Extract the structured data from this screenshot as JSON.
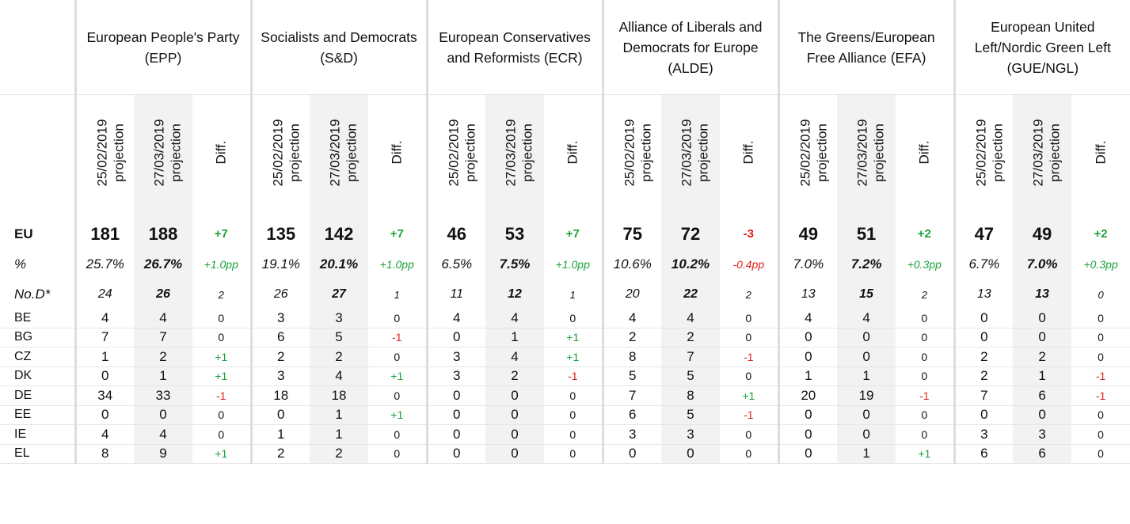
{
  "parties": [
    {
      "name": "European People's Party (EPP)"
    },
    {
      "name": "Socialists and Democrats (S&D)"
    },
    {
      "name": "European Conservatives and Reformists (ECR)"
    },
    {
      "name": "Alliance of Liberals and Democrats for Europe (ALDE)"
    },
    {
      "name": "The Greens/European Free Alliance (EFA)"
    },
    {
      "name": "European United Left/Nordic Green Left (GUE/NGL)"
    }
  ],
  "subheaders": {
    "proj1_date": "25/02/2019",
    "proj1_word": "projection",
    "proj2_date": "27/03/2019",
    "proj2_word": "projection",
    "diff": "Diff."
  },
  "summary_rows": {
    "eu": {
      "label": "EU",
      "cells": [
        [
          "181",
          "188",
          "+7"
        ],
        [
          "135",
          "142",
          "+7"
        ],
        [
          "46",
          "53",
          "+7"
        ],
        [
          "75",
          "72",
          "-3"
        ],
        [
          "49",
          "51",
          "+2"
        ],
        [
          "47",
          "49",
          "+2"
        ]
      ]
    },
    "pct": {
      "label": "%",
      "cells": [
        [
          "25.7%",
          "26.7%",
          "+1.0pp"
        ],
        [
          "19.1%",
          "20.1%",
          "+1.0pp"
        ],
        [
          "6.5%",
          "7.5%",
          "+1.0pp"
        ],
        [
          "10.6%",
          "10.2%",
          "-0.4pp"
        ],
        [
          "7.0%",
          "7.2%",
          "+0.3pp"
        ],
        [
          "6.7%",
          "7.0%",
          "+0.3pp"
        ]
      ]
    },
    "nod": {
      "label": "No.D*",
      "cells": [
        [
          "24",
          "26",
          "2"
        ],
        [
          "26",
          "27",
          "1"
        ],
        [
          "11",
          "12",
          "1"
        ],
        [
          "20",
          "22",
          "2"
        ],
        [
          "13",
          "15",
          "2"
        ],
        [
          "13",
          "13",
          "0"
        ]
      ]
    }
  },
  "countries": [
    {
      "code": "BE",
      "cells": [
        [
          "4",
          "4",
          "0"
        ],
        [
          "3",
          "3",
          "0"
        ],
        [
          "4",
          "4",
          "0"
        ],
        [
          "4",
          "4",
          "0"
        ],
        [
          "4",
          "4",
          "0"
        ],
        [
          "0",
          "0",
          "0"
        ]
      ]
    },
    {
      "code": "BG",
      "cells": [
        [
          "7",
          "7",
          "0"
        ],
        [
          "6",
          "5",
          "-1"
        ],
        [
          "0",
          "1",
          "+1"
        ],
        [
          "2",
          "2",
          "0"
        ],
        [
          "0",
          "0",
          "0"
        ],
        [
          "0",
          "0",
          "0"
        ]
      ]
    },
    {
      "code": "CZ",
      "cells": [
        [
          "1",
          "2",
          "+1"
        ],
        [
          "2",
          "2",
          "0"
        ],
        [
          "3",
          "4",
          "+1"
        ],
        [
          "8",
          "7",
          "-1"
        ],
        [
          "0",
          "0",
          "0"
        ],
        [
          "2",
          "2",
          "0"
        ]
      ]
    },
    {
      "code": "DK",
      "cells": [
        [
          "0",
          "1",
          "+1"
        ],
        [
          "3",
          "4",
          "+1"
        ],
        [
          "3",
          "2",
          "-1"
        ],
        [
          "5",
          "5",
          "0"
        ],
        [
          "1",
          "1",
          "0"
        ],
        [
          "2",
          "1",
          "-1"
        ]
      ]
    },
    {
      "code": "DE",
      "cells": [
        [
          "34",
          "33",
          "-1"
        ],
        [
          "18",
          "18",
          "0"
        ],
        [
          "0",
          "0",
          "0"
        ],
        [
          "7",
          "8",
          "+1"
        ],
        [
          "20",
          "19",
          "-1"
        ],
        [
          "7",
          "6",
          "-1"
        ]
      ]
    },
    {
      "code": "EE",
      "cells": [
        [
          "0",
          "0",
          "0"
        ],
        [
          "0",
          "1",
          "+1"
        ],
        [
          "0",
          "0",
          "0"
        ],
        [
          "6",
          "5",
          "-1"
        ],
        [
          "0",
          "0",
          "0"
        ],
        [
          "0",
          "0",
          "0"
        ]
      ]
    },
    {
      "code": "IE",
      "cells": [
        [
          "4",
          "4",
          "0"
        ],
        [
          "1",
          "1",
          "0"
        ],
        [
          "0",
          "0",
          "0"
        ],
        [
          "3",
          "3",
          "0"
        ],
        [
          "0",
          "0",
          "0"
        ],
        [
          "3",
          "3",
          "0"
        ]
      ]
    },
    {
      "code": "EL",
      "cells": [
        [
          "8",
          "9",
          "+1"
        ],
        [
          "2",
          "2",
          "0"
        ],
        [
          "0",
          "0",
          "0"
        ],
        [
          "0",
          "0",
          "0"
        ],
        [
          "0",
          "1",
          "+1"
        ],
        [
          "6",
          "6",
          "0"
        ]
      ]
    }
  ],
  "colors": {
    "positive": "#1aa33a",
    "negative": "#e0201d",
    "shade": "#f2f2f2",
    "divider": "#dddddd"
  }
}
